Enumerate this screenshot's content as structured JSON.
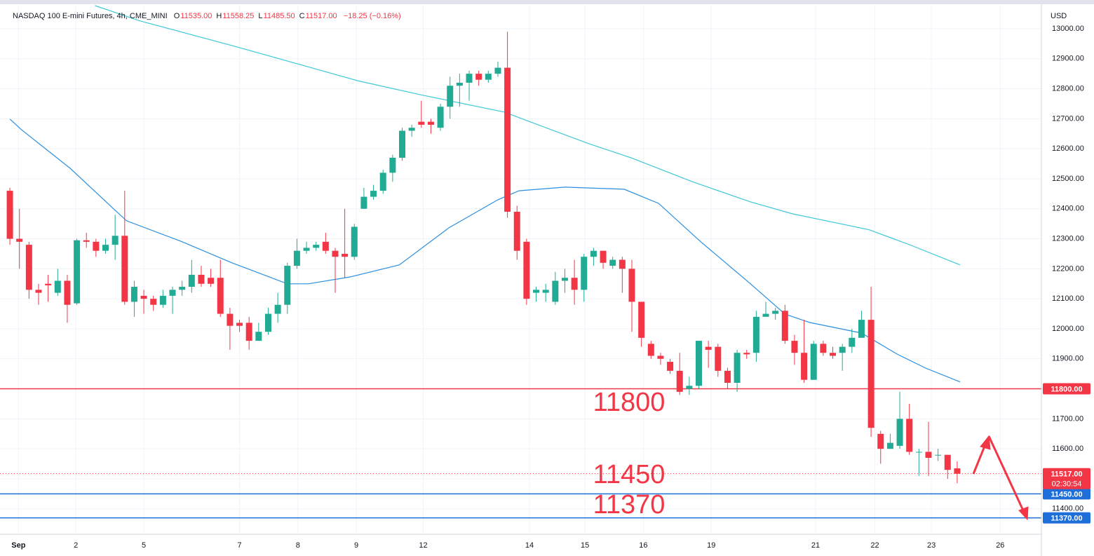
{
  "chart_data": {
    "type": "candlestick",
    "symbol": "NASDAQ 100 E-mini Futures, 4h, CME_MINI",
    "ohlc": [
      {
        "key": "O",
        "value": "11535.00"
      },
      {
        "key": "H",
        "value": "11558.25"
      },
      {
        "key": "L",
        "value": "11485.50"
      },
      {
        "key": "C",
        "value": "11517.00"
      }
    ],
    "change": "−18.25 (−0.16%)",
    "currency": "USD",
    "up_color": "#22ab94",
    "down_color": "#f23645",
    "x": [
      0,
      1,
      2,
      3,
      4,
      5,
      6,
      7,
      8,
      9,
      10,
      11,
      12,
      13,
      14,
      15,
      16,
      17,
      18,
      19,
      20,
      21,
      22,
      23,
      24,
      25,
      26,
      27,
      28,
      29,
      30,
      31,
      32,
      33,
      34,
      35,
      36,
      37,
      38,
      39,
      40,
      41,
      42,
      43,
      44,
      45,
      46,
      47,
      48,
      49,
      50,
      51,
      52,
      53,
      54,
      55,
      56,
      57,
      58,
      59,
      60,
      61,
      62,
      63,
      64,
      65,
      66,
      67,
      68,
      69,
      70,
      71,
      72,
      73,
      74,
      75,
      76,
      77,
      78,
      79,
      80,
      81,
      82,
      83,
      84,
      85,
      86,
      87,
      88,
      89,
      90,
      91,
      92,
      93,
      94,
      95,
      96,
      97,
      98,
      99
    ],
    "open": [
      12460,
      12300,
      12280,
      12130,
      12150,
      12120,
      12160,
      12085,
      12295,
      12290,
      12260,
      12280,
      12310,
      12090,
      12110,
      12100,
      12080,
      12110,
      12130,
      12140,
      12180,
      12170,
      12170,
      12050,
      12020,
      12020,
      11960,
      11990,
      12050,
      12080,
      12210,
      12260,
      12270,
      12290,
      12260,
      12250,
      12240,
      12400,
      12440,
      12460,
      12520,
      12570,
      12660,
      12690,
      12690,
      12670,
      12740,
      12810,
      12820,
      12850,
      12830,
      12850,
      12870,
      12390,
      12290,
      12120,
      12120,
      12090,
      12160,
      12170,
      12130,
      12240,
      12260,
      12210,
      12230,
      12200,
      12090,
      11950,
      11910,
      11890,
      11860,
      11800,
      11810,
      11940,
      11940,
      11860,
      11820,
      11920,
      11920,
      12040,
      12050,
      12060,
      11960,
      11920,
      11830,
      11950,
      11920,
      11920,
      11940,
      11970,
      12030,
      11650,
      11600,
      11610,
      11700,
      11590,
      11590,
      11580,
      11580,
      11535
    ],
    "high": [
      12470,
      12400,
      12290,
      12150,
      12180,
      12200,
      12180,
      12300,
      12320,
      12300,
      12300,
      12380,
      12460,
      12160,
      12130,
      12110,
      12130,
      12140,
      12160,
      12230,
      12210,
      12200,
      12230,
      12070,
      12030,
      12040,
      12020,
      12070,
      12120,
      12220,
      12300,
      12290,
      12290,
      12320,
      12270,
      12400,
      12350,
      12470,
      12480,
      12530,
      12580,
      12670,
      12680,
      12760,
      12700,
      12750,
      12840,
      12850,
      12860,
      12860,
      12860,
      12890,
      12990,
      12410,
      12300,
      12140,
      12150,
      12190,
      12200,
      12230,
      12250,
      12270,
      12260,
      12240,
      12240,
      12230,
      12090,
      11960,
      11920,
      11900,
      11920,
      11840,
      11960,
      11960,
      11950,
      11870,
      11930,
      11930,
      12060,
      12090,
      12070,
      12080,
      11980,
      12030,
      11960,
      11960,
      11940,
      11950,
      12000,
      12060,
      12140,
      11660,
      11650,
      11790,
      11750,
      11600,
      11690,
      11600,
      11580,
      11558.25
    ],
    "low": [
      12280,
      12200,
      12100,
      12080,
      12090,
      12110,
      12020,
      12080,
      12270,
      12240,
      12250,
      12230,
      12080,
      12040,
      12050,
      12060,
      12070,
      12050,
      12110,
      12120,
      12140,
      12140,
      12040,
      11930,
      11990,
      11930,
      11960,
      11980,
      12020,
      12050,
      12200,
      12250,
      12260,
      12250,
      12120,
      12170,
      12230,
      12400,
      12430,
      12450,
      12490,
      12560,
      12640,
      12670,
      12650,
      12660,
      12700,
      12740,
      12760,
      12810,
      12820,
      12840,
      12370,
      12230,
      12080,
      12090,
      12090,
      12080,
      12120,
      12080,
      12090,
      12210,
      12200,
      12200,
      12120,
      11990,
      11940,
      11900,
      11880,
      11850,
      11780,
      11780,
      11800,
      11870,
      11840,
      11800,
      11790,
      11900,
      11890,
      12040,
      12030,
      11950,
      11880,
      11820,
      11830,
      11910,
      11900,
      11860,
      11920,
      11970,
      11640,
      11550,
      11600,
      11600,
      11580,
      11510,
      11510,
      11560,
      11500,
      11485.5
    ],
    "close": [
      12300,
      12290,
      12130,
      12120,
      12145,
      12160,
      12080,
      12295,
      12290,
      12260,
      12280,
      12310,
      12090,
      12140,
      12100,
      12080,
      12110,
      12130,
      12140,
      12180,
      12150,
      12150,
      12050,
      12010,
      12010,
      11960,
      11990,
      12050,
      12080,
      12210,
      12260,
      12270,
      12280,
      12260,
      12240,
      12240,
      12340,
      12440,
      12460,
      12520,
      12570,
      12660,
      12670,
      12680,
      12680,
      12740,
      12810,
      12820,
      12850,
      12830,
      12850,
      12870,
      12390,
      12260,
      12100,
      12130,
      12130,
      12160,
      12170,
      12130,
      12240,
      12260,
      12220,
      12230,
      12200,
      12090,
      11970,
      11910,
      11900,
      11860,
      11790,
      11810,
      11960,
      11930,
      11860,
      11820,
      11920,
      11915,
      12040,
      12050,
      12060,
      11960,
      11920,
      11830,
      11950,
      11920,
      11910,
      11940,
      11970,
      12030,
      11670,
      11600,
      11620,
      11700,
      11590,
      11590,
      11570,
      11580,
      11530,
      11517
    ],
    "lines": [
      {
        "color": "#2a8fe0",
        "x": [
          0,
          1.2,
          6.3,
          11,
          12.2,
          18,
          23.2,
          29,
          31.2,
          35.6,
          40.7,
          45.9,
          51,
          53.2,
          58,
          64.2,
          67.8,
          72.2,
          77.4,
          81,
          83.6,
          89,
          92.7,
          95.7,
          99.3
        ],
        "values": [
          12699,
          12664,
          12535,
          12395,
          12360,
          12290,
          12220,
          12150,
          12150,
          12173,
          12213,
          12337,
          12430,
          12460,
          12472,
          12465,
          12418,
          12290,
          12150,
          12049,
          12021,
          11986,
          11916,
          11869,
          11823
        ]
      },
      {
        "color": "#3ec8d8",
        "x": [
          8.9,
          13.6,
          23.2,
          29.7,
          36.3,
          42.9,
          51.7,
          54.6,
          60.5,
          64.9,
          71.5,
          77.4,
          81.8,
          89.8,
          94.2,
          99.3
        ],
        "values": [
          13077,
          13026,
          12944,
          12886,
          12827,
          12780,
          12722,
          12687,
          12617,
          12570,
          12488,
          12423,
          12383,
          12330,
          12278,
          12213
        ]
      }
    ],
    "levels": [
      {
        "value": 11800,
        "label": "11800.00",
        "note": "11800",
        "color": "#f23645"
      },
      {
        "value": 11450,
        "label": "11450.00",
        "note": "11450",
        "color": "#1e6fd9"
      },
      {
        "value": 11370,
        "label": "11370.00",
        "note": "11370",
        "color": "#1e6fd9"
      }
    ],
    "last": {
      "value": 11517,
      "label": "11517.00",
      "countdown": "02:30:54",
      "color": "#f23645"
    },
    "xlim": [
      -1.03,
      107.8
    ],
    "xticks": [
      {
        "value": 0.9,
        "label": "Sep"
      },
      {
        "value": 6.9,
        "label": "2"
      },
      {
        "value": 14,
        "label": "5"
      },
      {
        "value": 24,
        "label": "7"
      },
      {
        "value": 30.1,
        "label": "8"
      },
      {
        "value": 36.2,
        "label": "9"
      },
      {
        "value": 43.2,
        "label": "12"
      },
      {
        "value": 54.3,
        "label": "14"
      },
      {
        "value": 60.1,
        "label": "15"
      },
      {
        "value": 66.2,
        "label": "16"
      },
      {
        "value": 73.3,
        "label": "19"
      },
      {
        "value": 84.2,
        "label": "21"
      },
      {
        "value": 90.4,
        "label": "22"
      },
      {
        "value": 96.3,
        "label": "23"
      },
      {
        "value": 103.5,
        "label": "26"
      }
    ],
    "ylim": [
      11320,
      13077
    ],
    "yticks": [
      {
        "value": 11400,
        "label": "11400.00"
      },
      {
        "value": 11500,
        "label": "11500.00"
      },
      {
        "value": 11600,
        "label": "11600.00"
      },
      {
        "value": 11700,
        "label": "11700.00"
      },
      {
        "value": 11800,
        "label": "11800.00"
      },
      {
        "value": 11900,
        "label": "11900.00"
      },
      {
        "value": 12000,
        "label": "12000.00"
      },
      {
        "value": 12100,
        "label": "12100.00"
      },
      {
        "value": 12200,
        "label": "12200.00"
      },
      {
        "value": 12300,
        "label": "12300.00"
      },
      {
        "value": 12400,
        "label": "12400.00"
      },
      {
        "value": 12500,
        "label": "12500.00"
      },
      {
        "value": 12600,
        "label": "12600.00"
      },
      {
        "value": 12700,
        "label": "12700.00"
      },
      {
        "value": 12800,
        "label": "12800.00"
      },
      {
        "value": 12900,
        "label": "12900.00"
      },
      {
        "value": 13000,
        "label": "13000.00"
      }
    ],
    "grid": true
  }
}
